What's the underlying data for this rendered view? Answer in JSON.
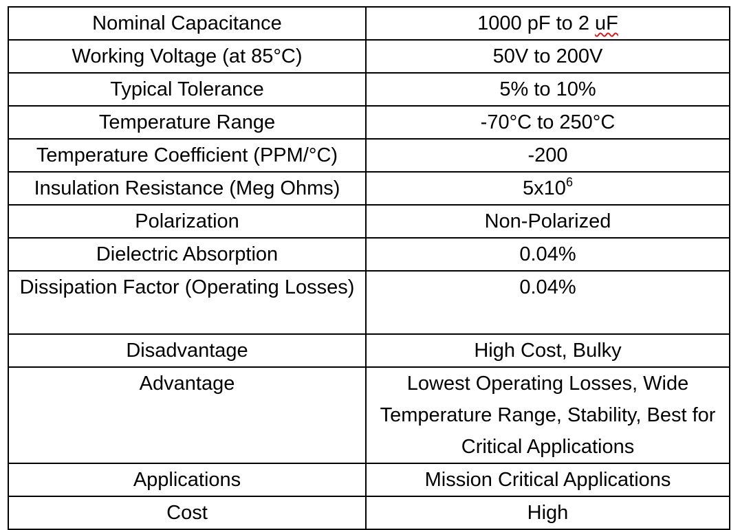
{
  "table": {
    "rows": [
      {
        "label": "Nominal Capacitance",
        "value_pre": "1000 pF to 2 ",
        "value_flagged": "uF"
      },
      {
        "label": "Working Voltage (at 85°C)",
        "value": "50V to 200V"
      },
      {
        "label": "Typical Tolerance",
        "value": "5% to 10%"
      },
      {
        "label": "Temperature Range",
        "value": "-70°C to 250°C"
      },
      {
        "label": "Temperature Coefficient (PPM/°C)",
        "value": "-200"
      },
      {
        "label": "Insulation Resistance (Meg Ohms)",
        "value_base": "5x10",
        "value_exp": "6"
      },
      {
        "label": "Polarization",
        "value": "Non-Polarized"
      },
      {
        "label": "Dielectric Absorption",
        "value": "0.04%"
      },
      {
        "label": "Dissipation Factor (Operating Losses)",
        "value": "0.04%"
      },
      {
        "label": "Disadvantage",
        "value": "High Cost, Bulky"
      },
      {
        "label": "Advantage",
        "value": "Lowest Operating Losses, Wide Temperature Range, Stability, Best for Critical Applications"
      },
      {
        "label": "Applications",
        "value": "Mission Critical Applications"
      },
      {
        "label": "Cost",
        "value": "High"
      }
    ]
  },
  "colors": {
    "text": "#000000",
    "border": "#000000",
    "spellcheck_underline": "#d81b1b"
  }
}
